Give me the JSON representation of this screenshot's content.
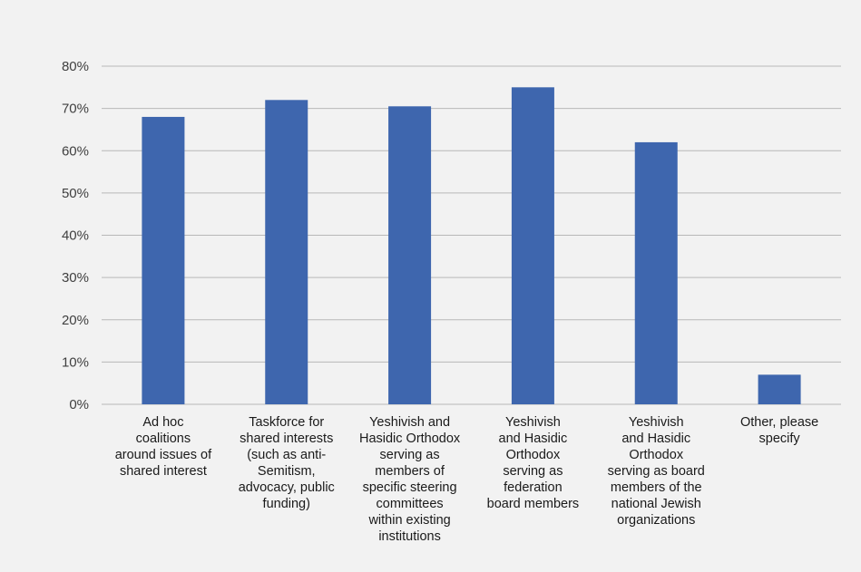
{
  "chart_data": {
    "type": "bar",
    "categories": [
      "Ad hoc\ncoalitions\naround issues of\nshared interest",
      "Taskforce for\nshared interests\n(such as anti-\nSemitism,\nadvocacy, public\nfunding)",
      "Yeshivish and\nHasidic Orthodox\nserving as\nmembers of\nspecific steering\ncommittees\nwithin existing\ninstitutions",
      "Yeshivish\nand Hasidic\nOrthodox\nserving as\nfederation\nboard members",
      "Yeshivish\nand Hasidic\nOrthodox\nserving as board\nmembers of the\nnational Jewish\norganizations",
      "Other, please\nspecify"
    ],
    "values": [
      0.68,
      0.72,
      0.705,
      0.75,
      0.62,
      0.07
    ],
    "yticks": [
      "0%",
      "10%",
      "20%",
      "30%",
      "40%",
      "50%",
      "60%",
      "70%",
      "80%"
    ],
    "ylim": [
      0,
      0.8
    ],
    "grid": true,
    "bar_color": "#3e66ae",
    "grid_color": "#b8b8b8",
    "background": "#f2f2f2"
  }
}
